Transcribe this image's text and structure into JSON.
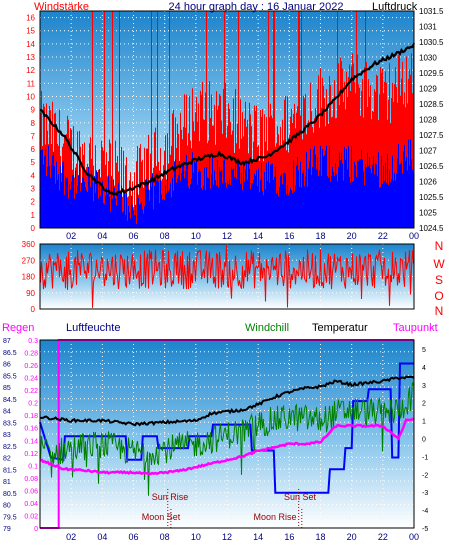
{
  "colors": {
    "red": "#ff0000",
    "blue": "#0000ff",
    "navy": "#000080",
    "green": "#008000",
    "magenta": "#ff00ff",
    "black": "#000000",
    "dark_red": "#990000",
    "sky_top": "#1d84cc",
    "sky_bottom": "#ffffff"
  },
  "chart_data": [
    {
      "type": "line",
      "panel": "wind-pressure",
      "title": "24 hour graph day : 16 Januar 2022",
      "ylabel_left": "Windstärke",
      "ylabel_right": "Luftdruck",
      "ylim_left": [
        0,
        16.5
      ],
      "ylim_right": [
        1024.5,
        1031.5
      ],
      "x_ticks": [
        "02",
        "04",
        "06",
        "08",
        "10",
        "12",
        "14",
        "16",
        "18",
        "20",
        "22",
        "00"
      ],
      "y_ticks_left": [
        0,
        1,
        2,
        3,
        4,
        5,
        6,
        7,
        8,
        9,
        10,
        11,
        12,
        13,
        14,
        15,
        16
      ],
      "y_ticks_right": [
        "1024.5",
        "1025",
        "1025.5",
        "1026",
        "1026.5",
        "1027",
        "1027.5",
        "1028",
        "1028.5",
        "1029",
        "1029.5",
        "1030",
        "1030.5",
        "1031",
        "1031.5"
      ],
      "pressure_keypoints": [
        [
          0,
          1028.3
        ],
        [
          1.5,
          1027.5
        ],
        [
          3,
          1026.3
        ],
        [
          4.5,
          1025.6
        ],
        [
          5.5,
          1025.7
        ],
        [
          7,
          1026.0
        ],
        [
          8.5,
          1026.4
        ],
        [
          10,
          1026.7
        ],
        [
          11.5,
          1026.9
        ],
        [
          13,
          1026.6
        ],
        [
          14.5,
          1026.8
        ],
        [
          16,
          1027.3
        ],
        [
          17.5,
          1027.9
        ],
        [
          18.7,
          1028.5
        ],
        [
          20,
          1029.3
        ],
        [
          21.5,
          1029.8
        ],
        [
          22.8,
          1030.1
        ],
        [
          24,
          1030.4
        ]
      ],
      "wind_base_blue": [
        [
          0,
          5.5
        ],
        [
          2,
          3.5
        ],
        [
          4,
          3
        ],
        [
          5,
          2.2
        ],
        [
          6,
          1.5
        ],
        [
          8,
          3.5
        ],
        [
          10,
          4.5
        ],
        [
          12,
          4
        ],
        [
          14,
          3.5
        ],
        [
          16,
          4
        ],
        [
          18,
          5
        ],
        [
          20,
          4.8
        ],
        [
          22,
          4.5
        ],
        [
          24,
          5.5
        ]
      ],
      "wind_gust_red": [
        [
          0,
          8
        ],
        [
          2,
          6
        ],
        [
          4,
          5
        ],
        [
          5,
          4
        ],
        [
          6,
          3.5
        ],
        [
          8,
          6
        ],
        [
          10,
          9
        ],
        [
          12,
          8.5
        ],
        [
          14,
          7
        ],
        [
          16,
          8
        ],
        [
          18,
          10
        ],
        [
          20,
          11
        ],
        [
          22,
          10
        ],
        [
          24,
          12
        ]
      ]
    },
    {
      "type": "line",
      "panel": "wind-direction",
      "y_ticks_left": [
        0,
        90,
        180,
        270,
        360
      ],
      "ylim": [
        0,
        360
      ],
      "right_labels": [
        "N",
        "W",
        "S",
        "O",
        "N"
      ],
      "direction_base": 220,
      "direction_spread": 110
    },
    {
      "type": "line",
      "panel": "weather",
      "headers": {
        "rain": "Regen",
        "humidity": "Luftfeuchte",
        "windchill": "Windchill",
        "temperature": "Temperatur",
        "dewpoint": "Taupunkt"
      },
      "y_ticks_humidity": [
        79,
        79.5,
        80,
        80.5,
        81,
        81.5,
        82,
        82.5,
        83,
        83.5,
        84,
        84.5,
        85,
        85.5,
        86,
        86.5,
        87
      ],
      "y_ticks_rain": [
        0,
        0.02,
        0.04,
        0.06,
        0.08,
        0.1,
        0.12,
        0.14,
        0.16,
        0.18,
        0.2,
        0.22,
        0.24,
        0.26,
        0.28,
        0.3
      ],
      "y_ticks_temp": [
        -5,
        -4,
        -3,
        -2,
        -1,
        0,
        1,
        2,
        3,
        4,
        5
      ],
      "ylim_humidity": [
        79,
        87
      ],
      "ylim_rain": [
        0,
        0.3
      ],
      "ylim_temp": [
        -5,
        5.5
      ],
      "annotations": {
        "sun_rise": "Sun Rise",
        "sun_set": "Sun Set",
        "moon_set": "Moon Set",
        "moon_rise": "Moon Rise"
      },
      "events_hours": {
        "sun_rise": 8.2,
        "sun_set": 16.6,
        "moon_set": 8.4,
        "moon_rise": 16.8
      },
      "temperature": [
        [
          0,
          1.2
        ],
        [
          2,
          1.0
        ],
        [
          4,
          1.0
        ],
        [
          6,
          0.8
        ],
        [
          8,
          0.9
        ],
        [
          10,
          1.0
        ],
        [
          11,
          1.4
        ],
        [
          12,
          1.5
        ],
        [
          13,
          1.6
        ],
        [
          14,
          1.9
        ],
        [
          15,
          2.3
        ],
        [
          16,
          2.6
        ],
        [
          17,
          2.8
        ],
        [
          18,
          2.9
        ],
        [
          19,
          3.2
        ],
        [
          20,
          3.0
        ],
        [
          21,
          3.1
        ],
        [
          22,
          3.2
        ],
        [
          23,
          3.4
        ],
        [
          24,
          3.4
        ]
      ],
      "dewpoint": [
        [
          0,
          -1.2
        ],
        [
          1.5,
          -1.7
        ],
        [
          3,
          -1.8
        ],
        [
          4,
          -1.9
        ],
        [
          6,
          -1.9
        ],
        [
          7,
          -2.0
        ],
        [
          8,
          -1.9
        ],
        [
          9,
          -1.8
        ],
        [
          10,
          -1.6
        ],
        [
          11,
          -1.4
        ],
        [
          12,
          -1.2
        ],
        [
          13,
          -1.0
        ],
        [
          14,
          -0.7
        ],
        [
          15,
          -0.5
        ],
        [
          16,
          -0.3
        ],
        [
          17,
          -0.3
        ],
        [
          18,
          -0.2
        ],
        [
          19,
          0.7
        ],
        [
          20,
          0.7
        ],
        [
          21,
          0.7
        ],
        [
          22,
          0.7
        ],
        [
          23,
          0.0
        ],
        [
          23.5,
          1.0
        ],
        [
          24,
          1.1
        ]
      ],
      "windchill": [
        [
          0,
          -0.5
        ],
        [
          1,
          -0.8
        ],
        [
          2,
          -0.5
        ],
        [
          4,
          -0.3
        ],
        [
          6,
          -0.8
        ],
        [
          8,
          -0.6
        ],
        [
          10,
          -0.3
        ],
        [
          12,
          0.2
        ],
        [
          13,
          0.4
        ],
        [
          14,
          0.8
        ],
        [
          15,
          1.0
        ],
        [
          16,
          1.2
        ],
        [
          18,
          1.0
        ],
        [
          19,
          1.4
        ],
        [
          20,
          1.6
        ],
        [
          22,
          1.4
        ],
        [
          23,
          1.6
        ],
        [
          24,
          2.5
        ]
      ],
      "humidity": [
        [
          0,
          83.5
        ],
        [
          0.7,
          82.0
        ],
        [
          1.5,
          81.9
        ],
        [
          1.6,
          82.9
        ],
        [
          5.5,
          82.9
        ],
        [
          5.6,
          81.9
        ],
        [
          6.5,
          81.9
        ],
        [
          6.6,
          82.9
        ],
        [
          7.5,
          82.9
        ],
        [
          7.6,
          82.4
        ],
        [
          9.5,
          82.4
        ],
        [
          9.6,
          82.9
        ],
        [
          11,
          82.9
        ],
        [
          11.1,
          83.4
        ],
        [
          13.5,
          83.4
        ],
        [
          13.6,
          82.3
        ],
        [
          15,
          82.3
        ],
        [
          15.1,
          80.5
        ],
        [
          18.5,
          80.5
        ],
        [
          18.6,
          81.5
        ],
        [
          19.5,
          81.5
        ],
        [
          19.6,
          82.4
        ],
        [
          20,
          82.4
        ],
        [
          20.1,
          84.4
        ],
        [
          21,
          84.4
        ],
        [
          21.1,
          84.9
        ],
        [
          22.5,
          84.9
        ],
        [
          22.6,
          82.0
        ],
        [
          23,
          82.0
        ],
        [
          23.1,
          86.0
        ],
        [
          23.9,
          86.0
        ],
        [
          24,
          86.0
        ]
      ],
      "rain": [
        [
          0,
          0
        ],
        [
          1.2,
          0
        ],
        [
          1.2,
          0.3
        ],
        [
          24,
          0.3
        ]
      ]
    }
  ]
}
